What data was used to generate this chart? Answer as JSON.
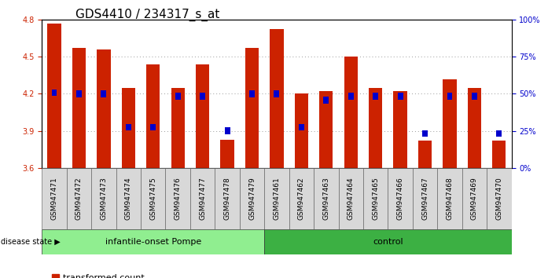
{
  "title": "GDS4410 / 234317_s_at",
  "samples": [
    "GSM947471",
    "GSM947472",
    "GSM947473",
    "GSM947474",
    "GSM947475",
    "GSM947476",
    "GSM947477",
    "GSM947478",
    "GSM947479",
    "GSM947461",
    "GSM947462",
    "GSM947463",
    "GSM947464",
    "GSM947465",
    "GSM947466",
    "GSM947467",
    "GSM947468",
    "GSM947469",
    "GSM947470"
  ],
  "bar_values": [
    4.77,
    4.57,
    4.56,
    4.25,
    4.44,
    4.25,
    4.44,
    3.83,
    4.57,
    4.72,
    4.2,
    4.22,
    4.5,
    4.25,
    4.22,
    3.82,
    4.32,
    4.25,
    3.82
  ],
  "percentile": [
    4.21,
    4.2,
    4.2,
    3.93,
    3.93,
    4.18,
    4.18,
    3.9,
    4.2,
    4.2,
    3.93,
    4.15,
    4.18,
    4.18,
    4.18,
    3.88,
    4.18,
    4.18,
    3.88
  ],
  "groups": [
    {
      "label": "infantile-onset Pompe",
      "start": 0,
      "end": 9,
      "color": "#90EE90"
    },
    {
      "label": "control",
      "start": 9,
      "end": 19,
      "color": "#3CB043"
    }
  ],
  "group_label_prefix": "disease state",
  "ylim": [
    3.6,
    4.8
  ],
  "yticks": [
    3.6,
    3.9,
    4.2,
    4.5,
    4.8
  ],
  "right_yticks": [
    0,
    25,
    50,
    75,
    100
  ],
  "bar_color": "#CC2200",
  "blue_color": "#0000CC",
  "bar_width": 0.55,
  "grid_color": "#888888",
  "title_fontsize": 11,
  "tick_fontsize": 7,
  "legend_fontsize": 8
}
